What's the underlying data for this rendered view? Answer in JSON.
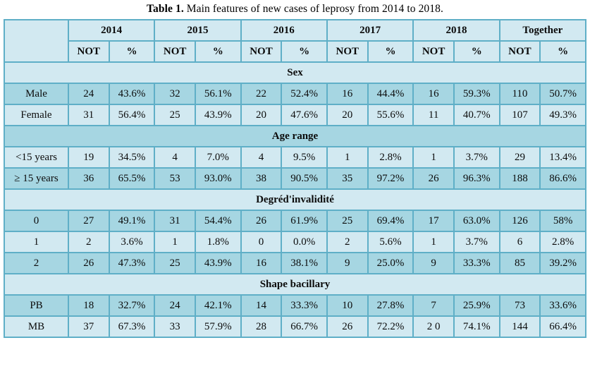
{
  "title": {
    "label": "Table 1.",
    "text": " Main features of new cases of leprosy from 2014 to 2018."
  },
  "colors": {
    "row_light": "#d2e9f1",
    "row_dark": "#a6d6e2",
    "grid_line": "#5fafc7",
    "outer_border": "#4da3bd",
    "text": "#0b0b0b"
  },
  "table": {
    "column_groups": [
      "2014",
      "2015",
      "2016",
      "2017",
      "2018",
      "Together"
    ],
    "sub_headers": [
      "NOT",
      "%"
    ],
    "sections": [
      {
        "header": "Sex",
        "rows": [
          {
            "label": "Male",
            "values": [
              "24",
              "43.6%",
              "32",
              "56.1%",
              "22",
              "52.4%",
              "16",
              "44.4%",
              "16",
              "59.3%",
              "110",
              "50.7%"
            ]
          },
          {
            "label": "Female",
            "values": [
              "31",
              "56.4%",
              "25",
              "43.9%",
              "20",
              "47.6%",
              "20",
              "55.6%",
              "11",
              "40.7%",
              "107",
              "49.3%"
            ]
          }
        ]
      },
      {
        "header": "Age range",
        "rows": [
          {
            "label": "<15 years",
            "values": [
              "19",
              "34.5%",
              "4",
              "7.0%",
              "4",
              "9.5%",
              "1",
              "2.8%",
              "1",
              "3.7%",
              "29",
              "13.4%"
            ]
          },
          {
            "label": "≥ 15 years",
            "values": [
              "36",
              "65.5%",
              "53",
              "93.0%",
              "38",
              "90.5%",
              "35",
              "97.2%",
              "26",
              "96.3%",
              "188",
              "86.6%"
            ]
          }
        ]
      },
      {
        "header": "Degréd'invalidité",
        "rows": [
          {
            "label": "0",
            "values": [
              "27",
              "49.1%",
              "31",
              "54.4%",
              "26",
              "61.9%",
              "25",
              "69.4%",
              "17",
              "63.0%",
              "126",
              "58%"
            ]
          },
          {
            "label": "1",
            "values": [
              "2",
              "3.6%",
              "1",
              "1.8%",
              "0",
              "0.0%",
              "2",
              "5.6%",
              "1",
              "3.7%",
              "6",
              "2.8%"
            ]
          },
          {
            "label": "2",
            "values": [
              "26",
              "47.3%",
              "25",
              "43.9%",
              "16",
              "38.1%",
              "9",
              "25.0%",
              "9",
              "33.3%",
              "85",
              "39.2%"
            ]
          }
        ]
      },
      {
        "header": "Shape bacillary",
        "rows": [
          {
            "label": "PB",
            "values": [
              "18",
              "32.7%",
              "24",
              "42.1%",
              "14",
              "33.3%",
              "10",
              "27.8%",
              "7",
              "25.9%",
              "73",
              "33.6%"
            ]
          },
          {
            "label": "MB",
            "values": [
              "37",
              "67.3%",
              "33",
              "57.9%",
              "28",
              "66.7%",
              "26",
              "72.2%",
              "2 0",
              "74.1%",
              "144",
              "66.4%"
            ]
          }
        ]
      }
    ]
  }
}
